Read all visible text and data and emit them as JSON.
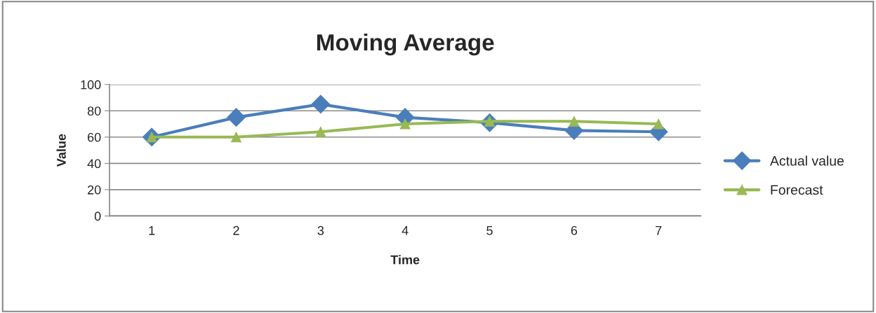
{
  "chart_data": {
    "type": "line",
    "title": "Moving Average",
    "xlabel": "Time",
    "ylabel": "Value",
    "categories": [
      "1",
      "2",
      "3",
      "4",
      "5",
      "6",
      "7"
    ],
    "series": [
      {
        "name": "Actual value",
        "color": "#4a7ebb",
        "marker": "diamond",
        "values": [
          60,
          75,
          85,
          75,
          71,
          65,
          64
        ]
      },
      {
        "name": "Forecast",
        "color": "#98b954",
        "marker": "triangle",
        "values": [
          60,
          60,
          64,
          70,
          72,
          72,
          70
        ]
      }
    ],
    "ylim": [
      0,
      100
    ],
    "yticks": [
      0,
      20,
      40,
      60,
      80,
      100
    ],
    "grid": "y",
    "legend": "right",
    "line_style": "solid"
  }
}
